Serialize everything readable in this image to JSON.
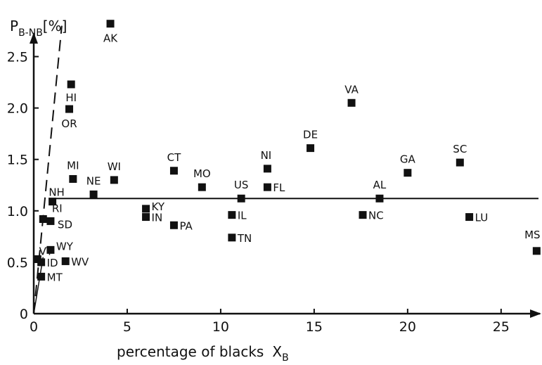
{
  "chart_data": {
    "type": "scatter",
    "title": "",
    "xlabel": "percentage of blacks",
    "xlabel_symbol": "X",
    "xlabel_sub": "B",
    "ylabel": "P",
    "ylabel_sub": "B-NB",
    "ylabel_unit": "[%]",
    "xlim": [
      0,
      27
    ],
    "ylim": [
      0,
      2.9
    ],
    "x_ticks": [
      0,
      5,
      10,
      15,
      20,
      25
    ],
    "y_ticks": [
      0,
      0.5,
      1.0,
      1.5,
      2.0,
      2.5
    ],
    "x_tick_labels": [
      "0",
      "5",
      "10",
      "15",
      "20",
      "25"
    ],
    "y_tick_labels": [
      "0",
      "0.5",
      "1.0",
      "1.5",
      "2.0",
      "2.5"
    ],
    "grid": false,
    "reference_line": {
      "style": "solid",
      "y": 1.12
    },
    "trend_line": {
      "style": "dashed",
      "from": [
        0,
        0
      ],
      "to": [
        1.5,
        2.8
      ]
    },
    "points": [
      {
        "label": "AK",
        "x": 4.1,
        "y": 2.82
      },
      {
        "label": "HI",
        "x": 2.0,
        "y": 2.23
      },
      {
        "label": "OR",
        "x": 1.9,
        "y": 1.99
      },
      {
        "label": "VA",
        "x": 17.0,
        "y": 2.05
      },
      {
        "label": "DE",
        "x": 14.8,
        "y": 1.61
      },
      {
        "label": "SC",
        "x": 22.8,
        "y": 1.47
      },
      {
        "label": "NI",
        "x": 12.5,
        "y": 1.41
      },
      {
        "label": "CT",
        "x": 7.5,
        "y": 1.39
      },
      {
        "label": "GA",
        "x": 20.0,
        "y": 1.37
      },
      {
        "label": "MI",
        "x": 2.1,
        "y": 1.31
      },
      {
        "label": "WI",
        "x": 4.3,
        "y": 1.3
      },
      {
        "label": "MO",
        "x": 9.0,
        "y": 1.23
      },
      {
        "label": "FL",
        "x": 12.5,
        "y": 1.23
      },
      {
        "label": "NE",
        "x": 3.2,
        "y": 1.16
      },
      {
        "label": "US",
        "x": 11.1,
        "y": 1.12
      },
      {
        "label": "AL",
        "x": 18.5,
        "y": 1.12
      },
      {
        "label": "NH",
        "x": 1.0,
        "y": 1.09
      },
      {
        "label": "KY",
        "x": 6.0,
        "y": 1.02
      },
      {
        "label": "IN",
        "x": 6.0,
        "y": 0.94
      },
      {
        "label": "IL",
        "x": 10.6,
        "y": 0.96
      },
      {
        "label": "NC",
        "x": 17.6,
        "y": 0.96
      },
      {
        "label": "LU",
        "x": 23.3,
        "y": 0.94
      },
      {
        "label": "RI",
        "x": 0.5,
        "y": 0.92
      },
      {
        "label": "SD",
        "x": 0.9,
        "y": 0.9
      },
      {
        "label": "PA",
        "x": 7.5,
        "y": 0.86
      },
      {
        "label": "TN",
        "x": 10.6,
        "y": 0.74
      },
      {
        "label": "WY",
        "x": 0.9,
        "y": 0.62
      },
      {
        "label": "MS",
        "x": 26.9,
        "y": 0.61
      },
      {
        "label": "VT",
        "x": 0.2,
        "y": 0.53
      },
      {
        "label": "ID",
        "x": 0.4,
        "y": 0.5
      },
      {
        "label": "WV",
        "x": 1.7,
        "y": 0.51
      },
      {
        "label": "MT",
        "x": 0.4,
        "y": 0.36
      }
    ]
  }
}
